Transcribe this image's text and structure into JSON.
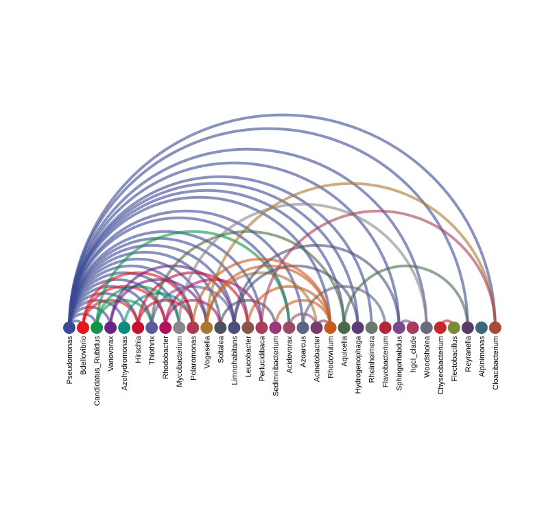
{
  "nodes": [
    {
      "label": "Pseudomonas",
      "color": "#3b4a94"
    },
    {
      "label": "Bdellovibrio",
      "color": "#e8141c"
    },
    {
      "label": "Candidatus_Rubidus",
      "color": "#12924a"
    },
    {
      "label": "Variovorax",
      "color": "#6a2383"
    },
    {
      "label": "Azohydromonas",
      "color": "#108a80"
    },
    {
      "label": "Hirschia",
      "color": "#c8102e"
    },
    {
      "label": "Thiothrix",
      "color": "#5a5a9e"
    },
    {
      "label": "Rhodobacter",
      "color": "#b0115a"
    },
    {
      "label": "Mycobacterium",
      "color": "#888888"
    },
    {
      "label": "Polaromonas",
      "color": "#b03a50"
    },
    {
      "label": "Vogesella",
      "color": "#a8782e"
    },
    {
      "label": "Soltalea",
      "color": "#4a5060"
    },
    {
      "label": "Limnohabitans",
      "color": "#4a4e7a"
    },
    {
      "label": "Leucobacter",
      "color": "#8a5548"
    },
    {
      "label": "Perlucidibaca",
      "color": "#a83d5a"
    },
    {
      "label": "Sedimnibacterium",
      "color": "#9a3878"
    },
    {
      "label": "Acidovorax",
      "color": "#9a4a6a"
    },
    {
      "label": "Azoarcus",
      "color": "#5e6384"
    },
    {
      "label": "Acinetobacter",
      "color": "#7a3a6a"
    },
    {
      "label": "Rhodovulum",
      "color": "#c85a1e"
    },
    {
      "label": "Aquicella",
      "color": "#4a6a4a"
    },
    {
      "label": "Hydrogenophaga",
      "color": "#5a3a7a"
    },
    {
      "label": "Rheinheimera",
      "color": "#6a7a6a"
    },
    {
      "label": "Flavobacterium",
      "color": "#b0283a"
    },
    {
      "label": "Sphingorhabdus",
      "color": "#7a4a8a"
    },
    {
      "label": "hgcI_clade",
      "color": "#a83a5a"
    },
    {
      "label": "Woodsholea",
      "color": "#6a6a7a"
    },
    {
      "label": "Chyseobacterium",
      "color": "#c8282a"
    },
    {
      "label": "Flectobacillus",
      "color": "#7a8a3a"
    },
    {
      "label": "Reyranella",
      "color": "#5a3a6a"
    },
    {
      "label": "Alpinimonas",
      "color": "#3a6a7a"
    },
    {
      "label": "Cloacibacterium",
      "color": "#a84a3a"
    }
  ],
  "edges": [
    {
      "source": 0,
      "target": 1
    },
    {
      "source": 0,
      "target": 2
    },
    {
      "source": 0,
      "target": 3
    },
    {
      "source": 0,
      "target": 4
    },
    {
      "source": 0,
      "target": 5
    },
    {
      "source": 0,
      "target": 6
    },
    {
      "source": 0,
      "target": 7
    },
    {
      "source": 0,
      "target": 8
    },
    {
      "source": 0,
      "target": 9
    },
    {
      "source": 0,
      "target": 10
    },
    {
      "source": 0,
      "target": 11
    },
    {
      "source": 0,
      "target": 12
    },
    {
      "source": 0,
      "target": 13
    },
    {
      "source": 0,
      "target": 14
    },
    {
      "source": 0,
      "target": 16
    },
    {
      "source": 0,
      "target": 17
    },
    {
      "source": 0,
      "target": 19
    },
    {
      "source": 0,
      "target": 20
    },
    {
      "source": 0,
      "target": 21
    },
    {
      "source": 0,
      "target": 22
    },
    {
      "source": 0,
      "target": 24
    },
    {
      "source": 0,
      "target": 26
    },
    {
      "source": 0,
      "target": 29
    },
    {
      "source": 0,
      "target": 31
    },
    {
      "source": 1,
      "target": 5
    },
    {
      "source": 1,
      "target": 7
    },
    {
      "source": 1,
      "target": 9
    },
    {
      "source": 2,
      "target": 8
    },
    {
      "source": 2,
      "target": 16
    },
    {
      "source": 2,
      "target": 6
    },
    {
      "source": 3,
      "target": 10
    },
    {
      "source": 3,
      "target": 12
    },
    {
      "source": 4,
      "target": 9
    },
    {
      "source": 5,
      "target": 9
    },
    {
      "source": 5,
      "target": 13
    },
    {
      "source": 6,
      "target": 12
    },
    {
      "source": 7,
      "target": 11
    },
    {
      "source": 7,
      "target": 14
    },
    {
      "source": 8,
      "target": 26
    },
    {
      "source": 10,
      "target": 31
    },
    {
      "source": 10,
      "target": 18
    },
    {
      "source": 11,
      "target": 15
    },
    {
      "source": 12,
      "target": 21
    },
    {
      "source": 12,
      "target": 24
    },
    {
      "source": 14,
      "target": 31
    },
    {
      "source": 16,
      "target": 18
    },
    {
      "source": 17,
      "target": 23
    },
    {
      "source": 19,
      "target": 10
    },
    {
      "source": 19,
      "target": 13
    },
    {
      "source": 19,
      "target": 15
    },
    {
      "source": 19,
      "target": 9
    },
    {
      "source": 20,
      "target": 29
    },
    {
      "source": 20,
      "target": 6
    },
    {
      "source": 24,
      "target": 25
    },
    {
      "source": 27,
      "target": 28
    },
    {
      "source": 18,
      "target": 19
    }
  ]
}
